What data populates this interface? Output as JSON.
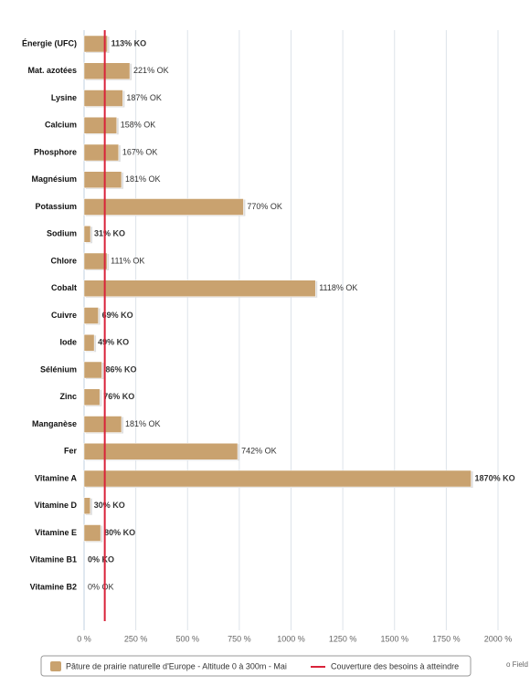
{
  "chart_data": {
    "type": "bar",
    "orientation": "horizontal",
    "categories": [
      "Énergie (UFC)",
      "Mat. azotées",
      "Lysine",
      "Calcium",
      "Phosphore",
      "Magnésium",
      "Potassium",
      "Sodium",
      "Chlore",
      "Cobalt",
      "Cuivre",
      "Iode",
      "Sélénium",
      "Zinc",
      "Manganèse",
      "Fer",
      "Vitamine A",
      "Vitamine D",
      "Vitamine E",
      "Vitamine B1",
      "Vitamine B2"
    ],
    "series": [
      {
        "name": "Pâture de prairie naturelle d'Europe - Altitude 0 à 300m - Mai",
        "color": "#c9a26f",
        "values": [
          113,
          221,
          187,
          158,
          167,
          181,
          770,
          31,
          111,
          1118,
          69,
          49,
          86,
          76,
          181,
          742,
          1870,
          30,
          80,
          0,
          0
        ],
        "value_labels": [
          "113% KO",
          "221% OK",
          "187% OK",
          "158% OK",
          "167% OK",
          "181% OK",
          "770% OK",
          "31% KO",
          "111% OK",
          "1118% OK",
          "69% KO",
          "49% KO",
          "86% KO",
          "76% KO",
          "181% OK",
          "742% OK",
          "1870% KO",
          "30% KO",
          "80% KO",
          "0% KO",
          "0% OK"
        ],
        "value_label_colors": [
          "#e8001c",
          "#666666",
          "#666666",
          "#666666",
          "#666666",
          "#666666",
          "#666666",
          "#e8001c",
          "#666666",
          "#666666",
          "#e8001c",
          "#e8001c",
          "#e8001c",
          "#e8001c",
          "#666666",
          "#666666",
          "#e8001c",
          "#e8001c",
          "#e8001c",
          "#e8001c",
          "#666666"
        ]
      }
    ],
    "reference_line": {
      "name": "Couverture des besoins à atteindre",
      "value": 100,
      "color": "#d9233a"
    },
    "xlim": [
      0,
      2000
    ],
    "xticks": [
      {
        "value": 0,
        "label": "0 %"
      },
      {
        "value": 250,
        "label": "250 %"
      },
      {
        "value": 500,
        "label": "500 %"
      },
      {
        "value": 750,
        "label": "750 %"
      },
      {
        "value": 1000,
        "label": "1000 %"
      },
      {
        "value": 1250,
        "label": "1250 %"
      },
      {
        "value": 1500,
        "label": "1500 %"
      },
      {
        "value": 1750,
        "label": "1750 %"
      },
      {
        "value": 2000,
        "label": "2000 %"
      }
    ],
    "grid": true,
    "credit": "o Field"
  }
}
